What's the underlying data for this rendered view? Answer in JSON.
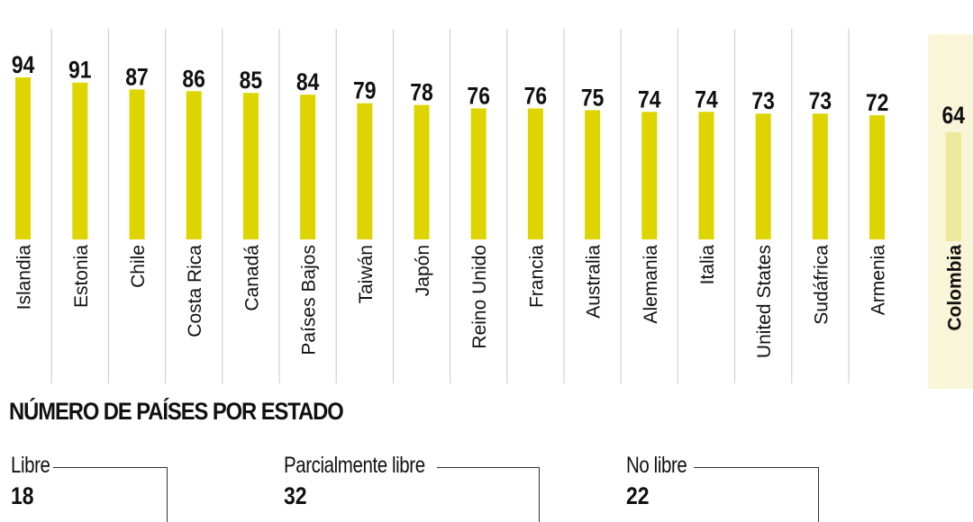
{
  "chart_data": {
    "type": "bar",
    "categories": [
      "Islandia",
      "Estonia",
      "Chile",
      "Costa Rica",
      "Canadá",
      "Países Bajos",
      "Taiwán",
      "Japón",
      "Reino Unido",
      "Francia",
      "Australia",
      "Alemania",
      "Italia",
      "United States",
      "Sudáfrica",
      "Armenia",
      "Colombia"
    ],
    "values": [
      94,
      91,
      87,
      86,
      85,
      84,
      79,
      78,
      76,
      76,
      75,
      74,
      74,
      73,
      73,
      72,
      64
    ],
    "highlight": "Colombia",
    "colors": {
      "bar": "#ddd400",
      "highlight_bar": "#ede99a",
      "highlight_bg": "#f8f5d9",
      "divider": "#c8c8c8"
    }
  },
  "summary": {
    "title": "NÚMERO DE PAÍSES POR ESTADO",
    "items": [
      {
        "label": "Libre",
        "value": "18"
      },
      {
        "label": "Parcialmente libre",
        "value": "32"
      },
      {
        "label": "No libre",
        "value": "22"
      }
    ]
  }
}
